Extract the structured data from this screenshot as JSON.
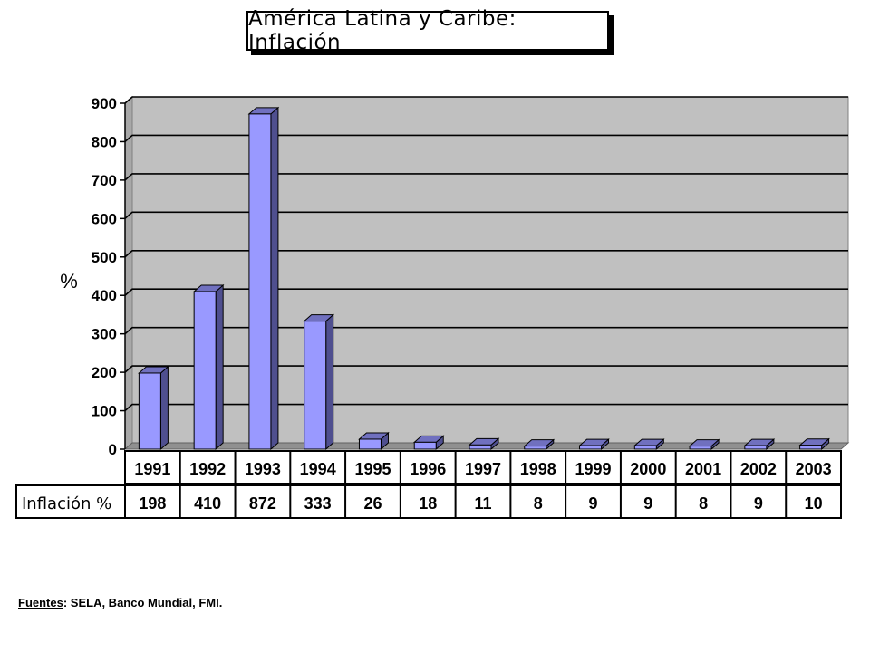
{
  "chart_data": {
    "type": "bar",
    "title": "América Latina y Caribe: Inflación",
    "ylabel": "%",
    "ylim": [
      0,
      900
    ],
    "yticks": [
      0,
      100,
      200,
      300,
      400,
      500,
      600,
      700,
      800,
      900
    ],
    "categories": [
      "1991",
      "1992",
      "1993",
      "1994",
      "1995",
      "1996",
      "1997",
      "1998",
      "1999",
      "2000",
      "2001",
      "2002",
      "2003"
    ],
    "values": [
      198,
      410,
      872,
      333,
      26,
      18,
      11,
      8,
      9,
      9,
      8,
      9,
      10
    ],
    "grid": true,
    "colors": {
      "bar_front": "#9999ff",
      "bar_side": "#4f4f8f",
      "bar_top": "#7070bf",
      "plot_bg": "#c0c0c0"
    },
    "table": {
      "row_label": "Inflación %",
      "values": [
        "198",
        "410",
        "872",
        "333",
        "26",
        "18",
        "11",
        "8",
        "9",
        "9",
        "8",
        "9",
        "10"
      ]
    }
  },
  "source": {
    "label": "Fuentes",
    "text": ":   SELA, Banco Mundial, FMI."
  }
}
